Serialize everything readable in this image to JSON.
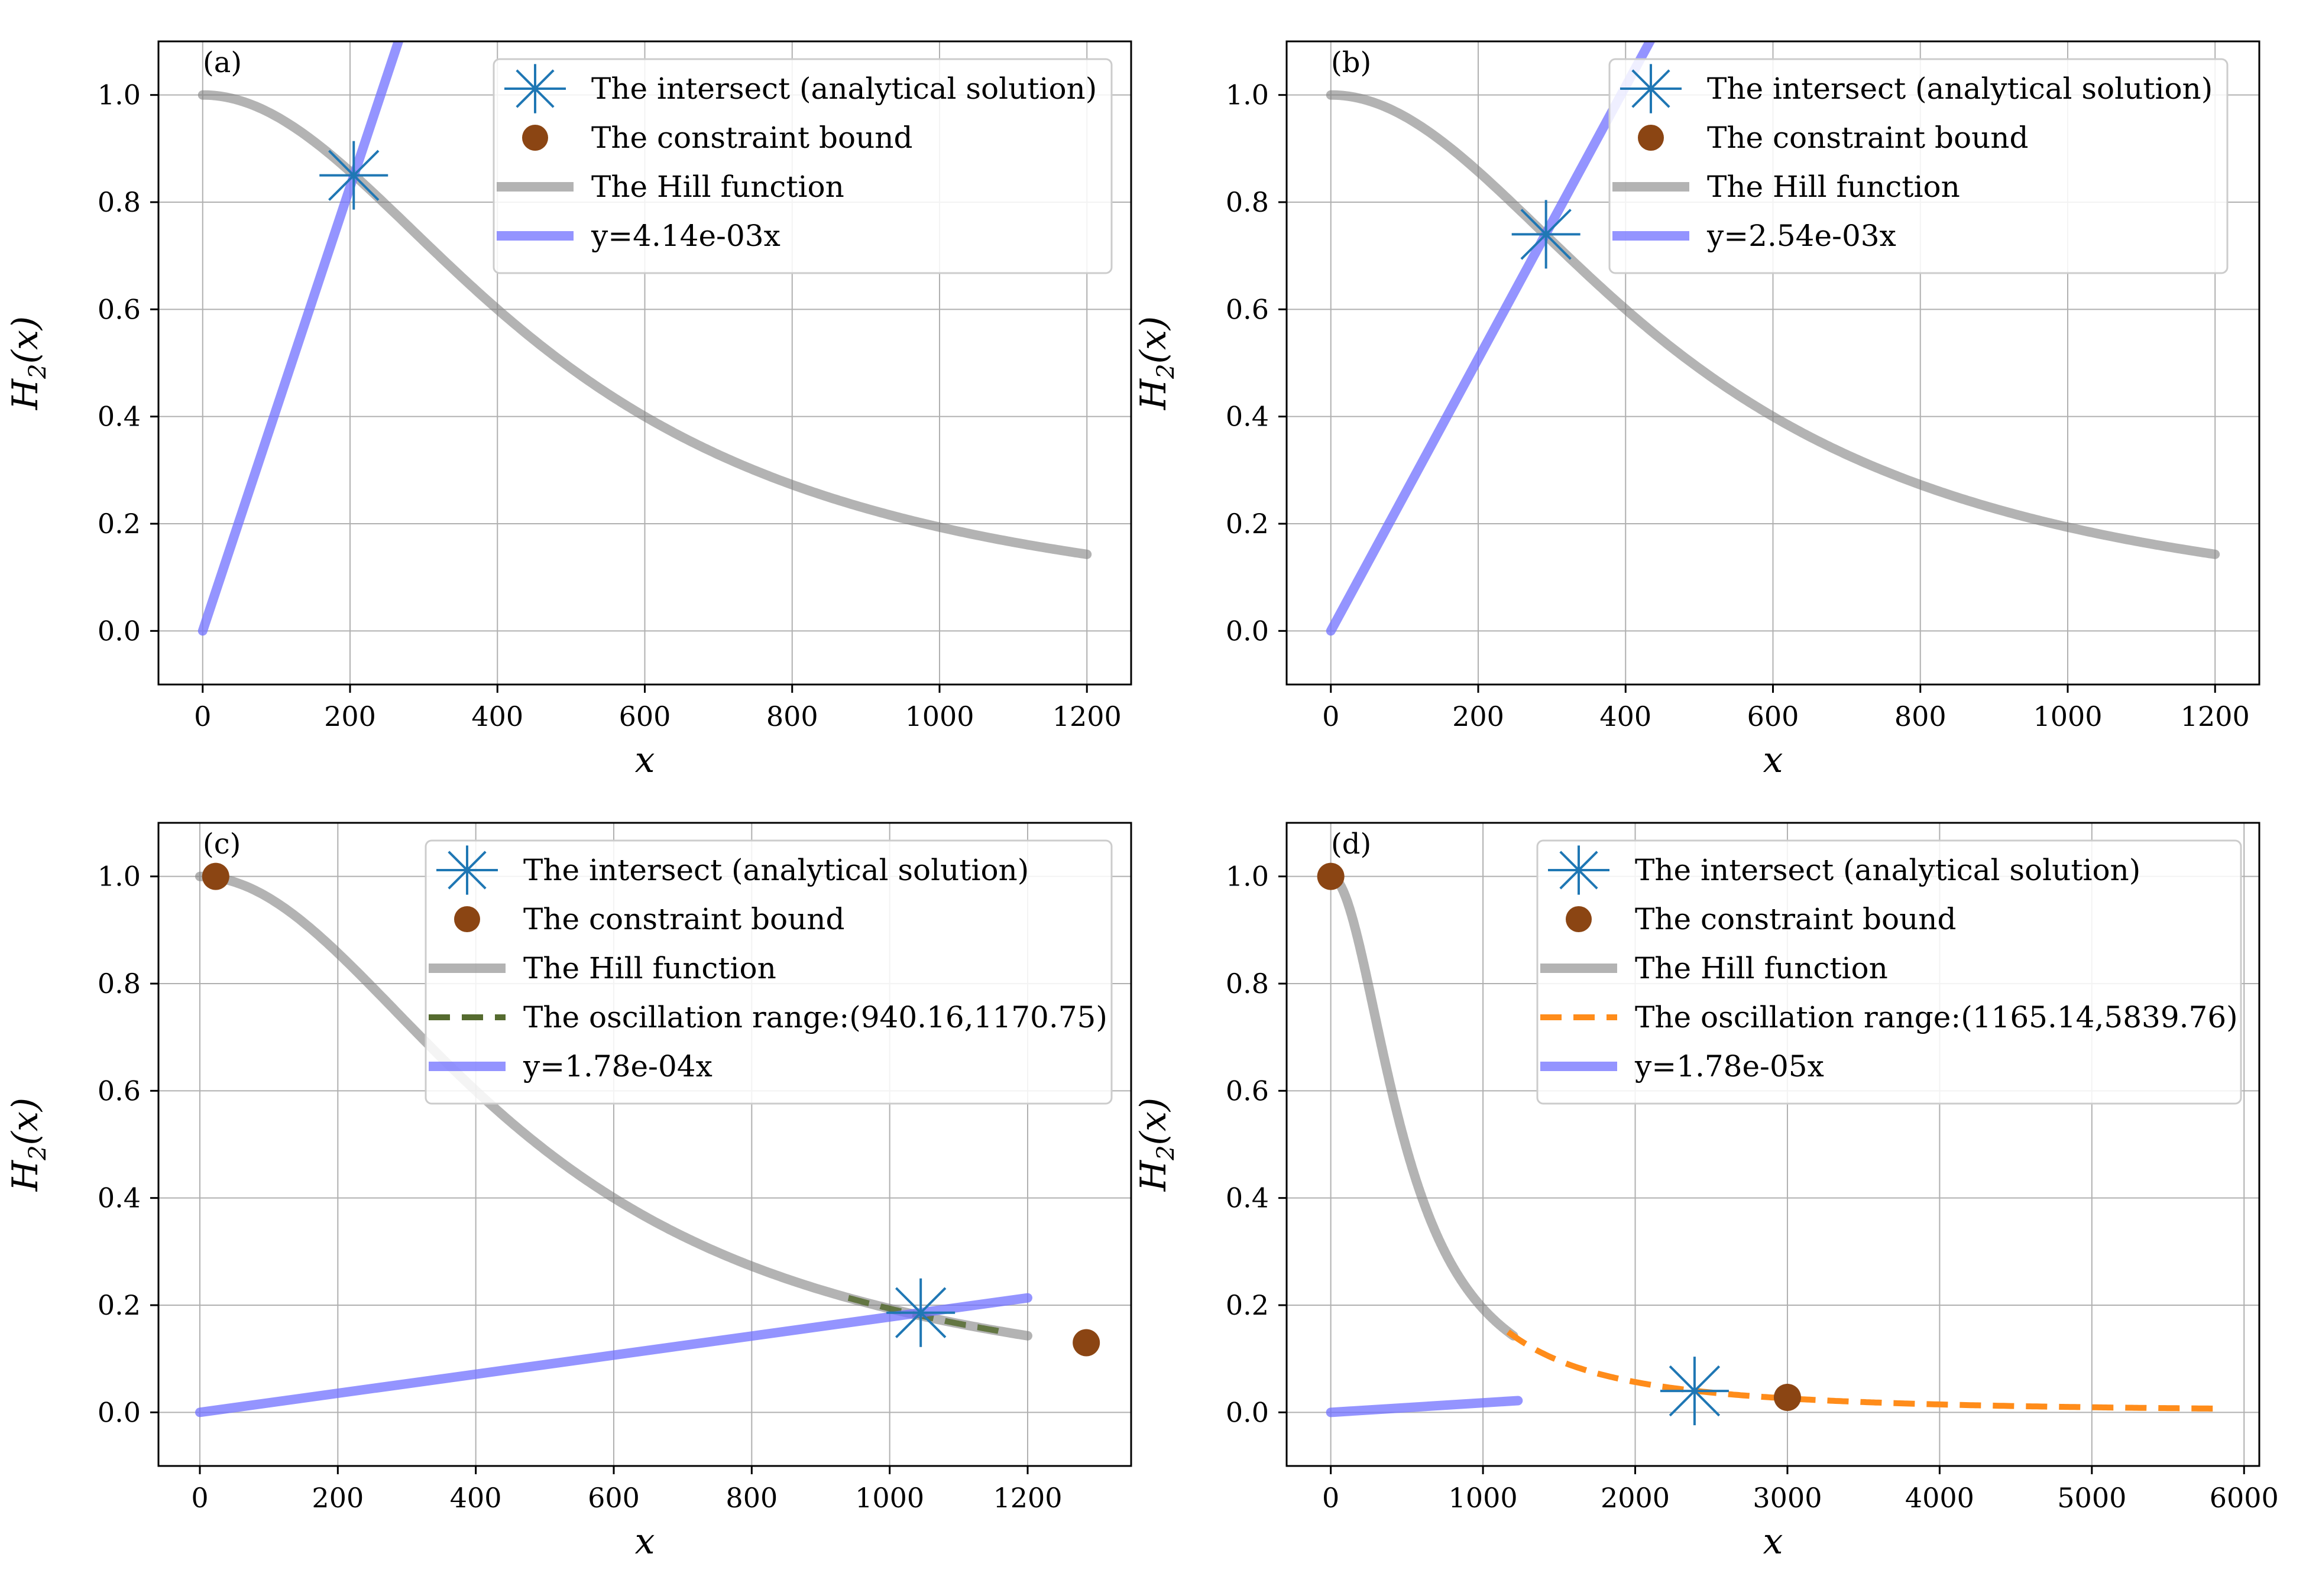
{
  "figure": {
    "colors": {
      "hill": "#808080",
      "line": "#7070ff",
      "intersect": "#1f77b4",
      "bound": "#8b4513",
      "osc_c": "#556b2f",
      "osc_d": "#ff8c1a",
      "grid": "#b0b0b0"
    }
  },
  "chart_data": [
    {
      "type": "line",
      "panel_label": "(a)",
      "xlabel": "x",
      "ylabel": "H2(x)",
      "xlim": [
        -60,
        1260
      ],
      "ylim": [
        -0.1,
        1.1
      ],
      "xticks": [
        0,
        200,
        400,
        600,
        800,
        1000,
        1200
      ],
      "xtick_labels": [
        "0",
        "200",
        "400",
        "600",
        "800",
        "1000",
        "1200"
      ],
      "yticks": [
        0.0,
        0.2,
        0.4,
        0.6,
        0.8,
        1.0
      ],
      "ytick_labels": [
        "0.0",
        "0.2",
        "0.4",
        "0.6",
        "0.8",
        "1.0"
      ],
      "grid": true,
      "legend_position": "top-right",
      "hill": {
        "K": 490,
        "n": 2,
        "x_range": [
          0,
          1200
        ],
        "name": "The Hill function"
      },
      "line": {
        "slope": 0.00414,
        "x_range": [
          0,
          320
        ],
        "name": "y=4.14e-03x"
      },
      "intersect": {
        "x": 205,
        "y": 0.85,
        "name": "The intersect (analytical solution)"
      },
      "bound_points": [],
      "bound_name": "The constraint bound",
      "oscillation": null
    },
    {
      "type": "line",
      "panel_label": "(b)",
      "xlabel": "x",
      "ylabel": "H2(x)",
      "xlim": [
        -60,
        1260
      ],
      "ylim": [
        -0.1,
        1.1
      ],
      "xticks": [
        0,
        200,
        400,
        600,
        800,
        1000,
        1200
      ],
      "xtick_labels": [
        "0",
        "200",
        "400",
        "600",
        "800",
        "1000",
        "1200"
      ],
      "yticks": [
        0.0,
        0.2,
        0.4,
        0.6,
        0.8,
        1.0
      ],
      "ytick_labels": [
        "0.0",
        "0.2",
        "0.4",
        "0.6",
        "0.8",
        "1.0"
      ],
      "grid": true,
      "legend_position": "top-right",
      "hill": {
        "K": 490,
        "n": 2,
        "x_range": [
          0,
          1200
        ],
        "name": "The Hill function"
      },
      "line": {
        "slope": 0.00254,
        "x_range": [
          0,
          460
        ],
        "name": "y=2.54e-03x"
      },
      "intersect": {
        "x": 292,
        "y": 0.74,
        "name": "The intersect (analytical solution)"
      },
      "bound_points": [],
      "bound_name": "The constraint bound",
      "oscillation": null
    },
    {
      "type": "line",
      "panel_label": "(c)",
      "xlabel": "x",
      "ylabel": "H2(x)",
      "xlim": [
        -60,
        1350
      ],
      "ylim": [
        -0.1,
        1.1
      ],
      "xticks": [
        0,
        200,
        400,
        600,
        800,
        1000,
        1200
      ],
      "xtick_labels": [
        "0",
        "200",
        "400",
        "600",
        "800",
        "1000",
        "1200"
      ],
      "yticks": [
        0.0,
        0.2,
        0.4,
        0.6,
        0.8,
        1.0
      ],
      "ytick_labels": [
        "0.0",
        "0.2",
        "0.4",
        "0.6",
        "0.8",
        "1.0"
      ],
      "grid": true,
      "legend_position": "top-right",
      "hill": {
        "K": 490,
        "n": 2,
        "x_range": [
          0,
          1200
        ],
        "name": "The Hill function"
      },
      "line": {
        "slope": 0.000178,
        "x_range": [
          0,
          1200
        ],
        "name": "y=1.78e-04x"
      },
      "intersect": {
        "x": 1045,
        "y": 0.186,
        "name": "The intersect (analytical solution)"
      },
      "bound_points": [
        {
          "x": 23,
          "y": 1.0
        },
        {
          "x": 1285,
          "y": 0.13
        }
      ],
      "bound_name": "The constraint bound",
      "oscillation": {
        "x_range": [
          940.16,
          1170.75
        ],
        "name": "The oscillation range:(940.16,1170.75)"
      }
    },
    {
      "type": "line",
      "panel_label": "(d)",
      "xlabel": "x",
      "ylabel": "H2(x)",
      "xlim": [
        -290,
        6100
      ],
      "ylim": [
        -0.1,
        1.1
      ],
      "xticks": [
        0,
        1000,
        2000,
        3000,
        4000,
        5000,
        6000
      ],
      "xtick_labels": [
        "0",
        "1000",
        "2000",
        "3000",
        "4000",
        "5000",
        "6000"
      ],
      "yticks": [
        0.0,
        0.2,
        0.4,
        0.6,
        0.8,
        1.0
      ],
      "ytick_labels": [
        "0.0",
        "0.2",
        "0.4",
        "0.6",
        "0.8",
        "1.0"
      ],
      "grid": true,
      "legend_position": "top-right",
      "hill": {
        "K": 490,
        "n": 2,
        "x_range": [
          0,
          1200
        ],
        "name": "The Hill function"
      },
      "line": {
        "slope": 1.78e-05,
        "x_range": [
          0,
          1230
        ],
        "name": "y=1.78e-05x"
      },
      "intersect": {
        "x": 2390,
        "y": 0.04,
        "name": "The intersect (analytical solution)"
      },
      "bound_points": [
        {
          "x": 0,
          "y": 1.0
        },
        {
          "x": 3000,
          "y": 0.028
        }
      ],
      "bound_name": "The constraint bound",
      "oscillation": {
        "x_range": [
          1165.14,
          5839.76
        ],
        "name": "The oscillation range:(1165.14,5839.76)"
      }
    }
  ]
}
